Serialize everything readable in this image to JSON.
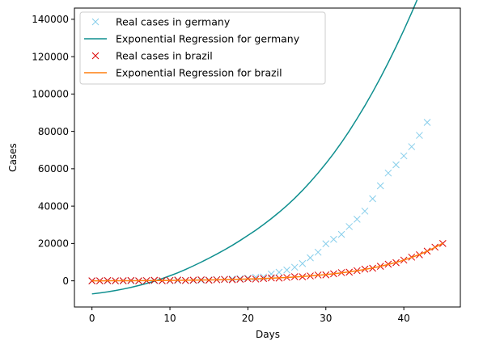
{
  "chart_data": {
    "type": "scatter",
    "title": "",
    "xlabel": "Days",
    "ylabel": "Cases",
    "xlim": [
      -2.25,
      47.25
    ],
    "ylim": [
      -14000,
      146000
    ],
    "xticks": [
      0,
      10,
      20,
      30,
      40
    ],
    "yticks": [
      0,
      20000,
      40000,
      60000,
      80000,
      100000,
      120000,
      140000
    ],
    "grid": false,
    "legend_position": "top-left",
    "series": [
      {
        "name": "Real cases in germany",
        "kind": "markers",
        "marker": "x",
        "color": "#87ceeb",
        "x": [
          0,
          1,
          2,
          3,
          4,
          5,
          6,
          7,
          8,
          9,
          10,
          11,
          12,
          13,
          14,
          15,
          16,
          17,
          18,
          19,
          20,
          21,
          22,
          23,
          24,
          25,
          26,
          27,
          28,
          29,
          30,
          31,
          32,
          33,
          34,
          35,
          36,
          37,
          38,
          39,
          40,
          41,
          42,
          43
        ],
        "y": [
          16,
          16,
          16,
          16,
          16,
          16,
          17,
          27,
          46,
          48,
          79,
          130,
          159,
          196,
          262,
          482,
          670,
          799,
          1040,
          1176,
          1457,
          1908,
          2078,
          3675,
          4585,
          5795,
          7272,
          9257,
          12327,
          15320,
          19848,
          22213,
          24873,
          29056,
          32986,
          37323,
          43938,
          50871,
          57695,
          62095,
          66885,
          71808,
          77872,
          84794
        ]
      },
      {
        "name": "Exponential Regression for germany",
        "kind": "line",
        "color": "#0f8f8f",
        "x": [
          0,
          1,
          2,
          3,
          4,
          5,
          6,
          7,
          8,
          9,
          10,
          11,
          12,
          13,
          14,
          15,
          16,
          17,
          18,
          19,
          20,
          21,
          22,
          23,
          24,
          25,
          26,
          27,
          28,
          29,
          30,
          31,
          32,
          33,
          34,
          35,
          36,
          37,
          38,
          39,
          40,
          41,
          42,
          43
        ],
        "y": [
          -7000,
          -6500,
          -5900,
          -5200,
          -4400,
          -3500,
          -2500,
          -1400,
          -200,
          1200,
          2700,
          4300,
          6100,
          8000,
          10000,
          12100,
          14300,
          16600,
          19000,
          21600,
          24300,
          27100,
          30100,
          33300,
          36700,
          40300,
          44200,
          48400,
          52900,
          57700,
          62800,
          68200,
          74000,
          80200,
          86800,
          93700,
          101000,
          108700,
          116800,
          125300,
          134200,
          143500,
          153300,
          163500
        ]
      },
      {
        "name": "Real cases in brazil",
        "kind": "markers",
        "marker": "x",
        "color": "#dd0000",
        "x": [
          0,
          1,
          2,
          3,
          4,
          5,
          6,
          7,
          8,
          9,
          10,
          11,
          12,
          13,
          14,
          15,
          16,
          17,
          18,
          19,
          20,
          21,
          22,
          23,
          24,
          25,
          26,
          27,
          28,
          29,
          30,
          31,
          32,
          33,
          34,
          35,
          36,
          37,
          38,
          39,
          40,
          41,
          42,
          43,
          44,
          45
        ],
        "y": [
          0,
          0,
          0,
          0,
          0,
          0,
          0,
          0,
          0,
          0,
          0,
          0,
          0,
          0,
          0,
          0,
          0,
          0,
          0,
          0,
          0,
          0,
          0,
          0,
          0,
          0,
          0,
          0,
          0,
          0,
          0,
          0,
          0,
          0,
          0,
          0,
          0,
          0,
          0,
          0,
          0,
          0,
          0,
          0,
          0,
          0
        ]
      },
      {
        "name": "Exponential Regression for brazil",
        "kind": "line",
        "color": "#ff7f0e",
        "x": [],
        "y": []
      }
    ]
  }
}
